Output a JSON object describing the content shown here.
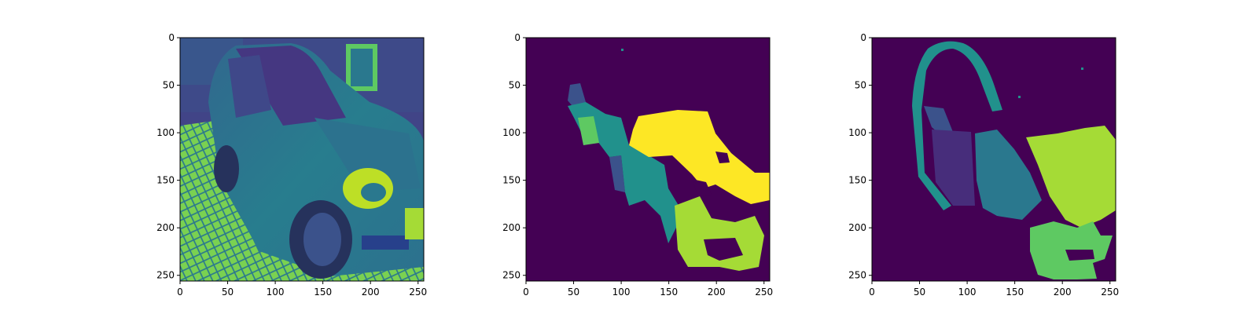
{
  "chart_data": [
    {
      "type": "heatmap",
      "title": "",
      "xlabel": "",
      "ylabel": "",
      "xlim": [
        0,
        256
      ],
      "ylim": [
        256,
        0
      ],
      "xticks": [
        0,
        50,
        100,
        150,
        200,
        250
      ],
      "yticks": [
        0,
        50,
        100,
        150,
        200,
        250
      ],
      "content": "grayscale car photo rendered with viridis colormap",
      "colormap": "viridis"
    },
    {
      "type": "heatmap",
      "title": "",
      "xlabel": "",
      "ylabel": "",
      "xlim": [
        0,
        256
      ],
      "ylim": [
        256,
        0
      ],
      "xticks": [
        0,
        50,
        100,
        150,
        200,
        250
      ],
      "yticks": [
        0,
        50,
        100,
        150,
        200,
        250
      ],
      "content": "predicted segmentation mask",
      "colormap": "viridis",
      "segment_colors": {
        "background": "#440154",
        "class_1": "#3b528b",
        "class_2": "#21918c",
        "class_3": "#5ec962",
        "class_4": "#a5db36",
        "class_5": "#fde725"
      }
    },
    {
      "type": "heatmap",
      "title": "",
      "xlabel": "",
      "ylabel": "",
      "xlim": [
        0,
        256
      ],
      "ylim": [
        256,
        0
      ],
      "xticks": [
        0,
        50,
        100,
        150,
        200,
        250
      ],
      "yticks": [
        0,
        50,
        100,
        150,
        200,
        250
      ],
      "content": "ground-truth segmentation mask",
      "colormap": "viridis",
      "segment_colors": {
        "background": "#440154",
        "class_1": "#472d7b",
        "class_2": "#21918c",
        "class_3": "#2a788e",
        "class_4": "#5ec962",
        "class_5": "#a5db36"
      }
    }
  ]
}
